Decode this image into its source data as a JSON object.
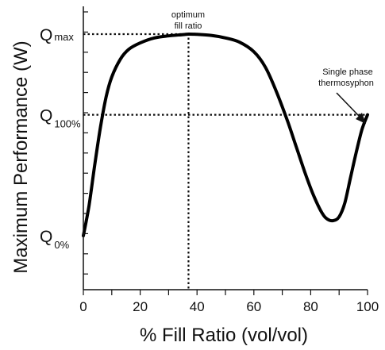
{
  "chart_data": {
    "type": "line",
    "xlabel": "% Fill Ratio (vol/vol)",
    "ylabel": "Maximum Performance (W)",
    "xlim": [
      0,
      100
    ],
    "x_ticks": [
      "0",
      "20",
      "40",
      "60",
      "80",
      "100"
    ],
    "y_tick_labels": [
      {
        "main": "Q",
        "sub": "max",
        "level": 0.9
      },
      {
        "main": "Q",
        "sub": "100%",
        "level": 0.58
      },
      {
        "main": "Q",
        "sub": "0%",
        "level": 0.1
      }
    ],
    "series": [
      {
        "x": [
          0,
          2,
          4,
          6,
          8,
          10,
          13,
          16,
          20,
          25,
          30,
          35,
          37,
          40,
          45,
          50,
          55,
          60,
          64,
          68,
          72,
          75,
          78,
          81,
          84,
          86,
          88,
          90,
          92,
          94,
          96,
          98,
          100
        ],
        "y": [
          0.1,
          0.22,
          0.38,
          0.53,
          0.65,
          0.73,
          0.8,
          0.84,
          0.865,
          0.885,
          0.893,
          0.898,
          0.9,
          0.899,
          0.895,
          0.885,
          0.868,
          0.83,
          0.77,
          0.67,
          0.55,
          0.45,
          0.35,
          0.26,
          0.19,
          0.165,
          0.16,
          0.175,
          0.23,
          0.33,
          0.43,
          0.52,
          0.58
        ]
      }
    ],
    "reference_lines": {
      "optimum_x": 37,
      "qmax_level": 0.9,
      "q100_level": 0.58
    },
    "annotations": [
      {
        "lines": [
          "optimum",
          "fill ratio"
        ]
      },
      {
        "lines": [
          "Single phase",
          "thermosyphon"
        ]
      }
    ],
    "grid": false
  }
}
